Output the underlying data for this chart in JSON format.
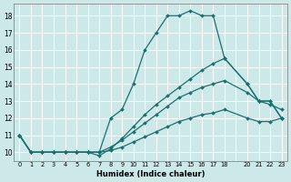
{
  "xlabel": "Humidex (Indice chaleur)",
  "ylabel": "",
  "background_color": "#cce8e8",
  "line_color": "#1a7070",
  "grid_color": "#ffffff",
  "xlim": [
    -0.5,
    23.5
  ],
  "ylim": [
    9.5,
    18.7
  ],
  "xtick_positions": [
    0,
    1,
    2,
    3,
    4,
    5,
    6,
    7,
    8,
    9,
    10,
    11,
    12,
    13,
    14,
    15,
    16,
    17,
    18,
    20,
    21,
    22,
    23
  ],
  "xtick_labels": [
    "0",
    "1",
    "2",
    "3",
    "4",
    "5",
    "6",
    "7",
    "8",
    "9",
    "10",
    "11",
    "12",
    "13",
    "14",
    "15",
    "16",
    "17",
    "18",
    "20",
    "21",
    "22",
    "23"
  ],
  "yticks": [
    10,
    11,
    12,
    13,
    14,
    15,
    16,
    17,
    18
  ],
  "lines": [
    {
      "x": [
        0,
        1,
        2,
        3,
        4,
        5,
        6,
        7,
        8,
        9,
        10,
        11,
        12,
        13,
        14,
        15,
        16,
        17,
        18,
        20,
        21,
        22,
        23
      ],
      "y": [
        11,
        10,
        10,
        10,
        10,
        10,
        10,
        10,
        12,
        12.5,
        14,
        16,
        17,
        18,
        18,
        18.3,
        18,
        18,
        15.5,
        14,
        13,
        13,
        12
      ]
    },
    {
      "x": [
        0,
        1,
        2,
        3,
        4,
        5,
        6,
        7,
        8,
        9,
        10,
        11,
        12,
        13,
        14,
        15,
        16,
        17,
        18,
        20,
        21,
        22,
        23
      ],
      "y": [
        11,
        10,
        10,
        10,
        10,
        10,
        10,
        9.8,
        10.2,
        10.8,
        11.5,
        12.2,
        12.8,
        13.3,
        13.8,
        14.3,
        14.8,
        15.2,
        15.5,
        14,
        13,
        13,
        12
      ]
    },
    {
      "x": [
        0,
        1,
        2,
        3,
        4,
        5,
        6,
        7,
        8,
        9,
        10,
        11,
        12,
        13,
        14,
        15,
        16,
        17,
        18,
        20,
        21,
        22,
        23
      ],
      "y": [
        11,
        10,
        10,
        10,
        10,
        10,
        10,
        10,
        10.3,
        10.7,
        11.2,
        11.7,
        12.2,
        12.7,
        13.2,
        13.5,
        13.8,
        14.0,
        14.2,
        13.5,
        13.0,
        12.8,
        12.5
      ]
    },
    {
      "x": [
        0,
        1,
        2,
        3,
        4,
        5,
        6,
        7,
        8,
        9,
        10,
        11,
        12,
        13,
        14,
        15,
        16,
        17,
        18,
        20,
        21,
        22,
        23
      ],
      "y": [
        11,
        10,
        10,
        10,
        10,
        10,
        10,
        10,
        10.1,
        10.3,
        10.6,
        10.9,
        11.2,
        11.5,
        11.8,
        12.0,
        12.2,
        12.3,
        12.5,
        12.0,
        11.8,
        11.8,
        12.0
      ]
    }
  ]
}
